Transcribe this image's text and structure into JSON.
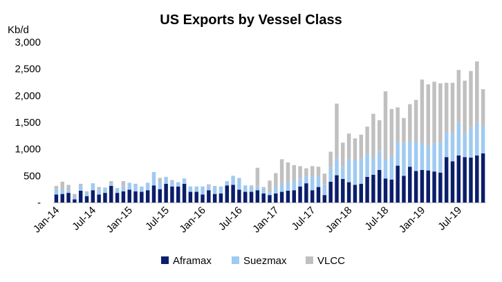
{
  "chart_data": {
    "type": "bar",
    "stacked": true,
    "title": "US Exports by Vessel Class",
    "y_unit_label": "Kb/d",
    "ylim": [
      0,
      3000
    ],
    "y_ticks": [
      "-",
      "500",
      "1,000",
      "1,500",
      "2,000",
      "2,500",
      "3,000"
    ],
    "y_tick_values": [
      0,
      500,
      1000,
      1500,
      2000,
      2500,
      3000
    ],
    "x_tick_labels": [
      "Jan-14",
      "Jul-14",
      "Jan-15",
      "Jul-15",
      "Jan-16",
      "Jul-16",
      "Jan-17",
      "Jul-17",
      "Jan-18",
      "Jul-18",
      "Jan-19",
      "Jul-19"
    ],
    "x_tick_every": 6,
    "categories": [
      "Jan-14",
      "Feb-14",
      "Mar-14",
      "Apr-14",
      "May-14",
      "Jun-14",
      "Jul-14",
      "Aug-14",
      "Sep-14",
      "Oct-14",
      "Nov-14",
      "Dec-14",
      "Jan-15",
      "Feb-15",
      "Mar-15",
      "Apr-15",
      "May-15",
      "Jun-15",
      "Jul-15",
      "Aug-15",
      "Sep-15",
      "Oct-15",
      "Nov-15",
      "Dec-15",
      "Jan-16",
      "Feb-16",
      "Mar-16",
      "Apr-16",
      "May-16",
      "Jun-16",
      "Jul-16",
      "Aug-16",
      "Sep-16",
      "Oct-16",
      "Nov-16",
      "Dec-16",
      "Jan-17",
      "Feb-17",
      "Mar-17",
      "Apr-17",
      "May-17",
      "Jun-17",
      "Jul-17",
      "Aug-17",
      "Sep-17",
      "Oct-17",
      "Nov-17",
      "Dec-17",
      "Jan-18",
      "Feb-18",
      "Mar-18",
      "Apr-18",
      "May-18",
      "Jun-18",
      "Jul-18",
      "Aug-18",
      "Sep-18",
      "Oct-18",
      "Nov-18",
      "Dec-18",
      "Jan-19",
      "Feb-19",
      "Mar-19",
      "Apr-19",
      "May-19",
      "Jun-19",
      "Jul-19",
      "Aug-19",
      "Sep-19",
      "Oct-19",
      "Nov-19"
    ],
    "series": [
      {
        "name": "Aframax",
        "color": "#0b1e6b",
        "values": [
          150,
          160,
          180,
          60,
          220,
          120,
          230,
          150,
          180,
          310,
          180,
          210,
          240,
          210,
          200,
          230,
          320,
          250,
          350,
          300,
          300,
          350,
          200,
          200,
          150,
          230,
          160,
          170,
          320,
          330,
          240,
          200,
          200,
          230,
          170,
          140,
          170,
          200,
          220,
          230,
          300,
          360,
          230,
          290,
          140,
          390,
          510,
          440,
          380,
          330,
          350,
          480,
          520,
          610,
          450,
          430,
          690,
          500,
          670,
          590,
          610,
          600,
          580,
          560,
          850,
          770,
          880,
          850,
          840,
          880,
          920
        ]
      },
      {
        "name": "Suezmax",
        "color": "#9fcaf2",
        "values": [
          100,
          80,
          50,
          50,
          90,
          60,
          130,
          100,
          100,
          50,
          90,
          90,
          130,
          120,
          100,
          140,
          250,
          120,
          130,
          80,
          80,
          100,
          100,
          100,
          150,
          90,
          130,
          130,
          80,
          170,
          220,
          120,
          100,
          70,
          90,
          50,
          120,
          150,
          150,
          170,
          150,
          130,
          250,
          200,
          200,
          260,
          320,
          230,
          430,
          460,
          460,
          440,
          320,
          350,
          350,
          430,
          430,
          620,
          480,
          540,
          490,
          450,
          530,
          570,
          460,
          520,
          610,
          440,
          560,
          610,
          520
        ]
      },
      {
        "name": "VLCC",
        "color": "#c0c0c0",
        "values": [
          60,
          150,
          100,
          50,
          40,
          30,
          0,
          40,
          0,
          40,
          0,
          100,
          0,
          20,
          0,
          0,
          0,
          90,
          0,
          40,
          0,
          0,
          0,
          0,
          0,
          20,
          20,
          0,
          0,
          0,
          0,
          0,
          20,
          350,
          30,
          220,
          260,
          460,
          380,
          300,
          230,
          150,
          200,
          180,
          200,
          300,
          1020,
          450,
          480,
          410,
          460,
          500,
          820,
          580,
          1280,
          890,
          660,
          460,
          690,
          790,
          1200,
          1160,
          1150,
          1100,
          930,
          950,
          990,
          990,
          1060,
          1150,
          680
        ]
      }
    ]
  }
}
